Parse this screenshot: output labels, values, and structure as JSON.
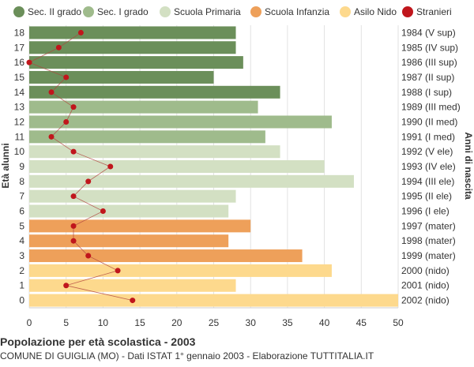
{
  "title": "Popolazione per età scolastica - 2003",
  "subtitle": "COMUNE DI GUIGLIA (MO) - Dati ISTAT 1° gennaio 2003 - Elaborazione TUTTITALIA.IT",
  "chart_data": {
    "type": "bar",
    "orientation": "horizontal",
    "ylabel_left": "Età alunni",
    "ylabel_right": "Anni di nascita",
    "xlim": [
      0,
      50
    ],
    "x_ticks": [
      0,
      5,
      10,
      15,
      20,
      25,
      30,
      35,
      40,
      45,
      50
    ],
    "grid": true,
    "legend_position": "top",
    "legend": [
      {
        "key": "sec2",
        "label": "Sec. II grado",
        "color": "#6b8f5a",
        "shape": "circle"
      },
      {
        "key": "sec1",
        "label": "Sec. I grado",
        "color": "#9fbb8c",
        "shape": "circle"
      },
      {
        "key": "primaria",
        "label": "Scuola Primaria",
        "color": "#d3e0c3",
        "shape": "circle"
      },
      {
        "key": "infanzia",
        "label": "Scuola Infanzia",
        "color": "#eea05a",
        "shape": "circle"
      },
      {
        "key": "nido",
        "label": "Asilo Nido",
        "color": "#fdd98d",
        "shape": "circle"
      },
      {
        "key": "stranieri",
        "label": "Stranieri",
        "color": "#c0161c",
        "shape": "circle"
      }
    ],
    "rows": [
      {
        "age": "18",
        "birth": "1984 (V sup)",
        "value": 28,
        "stranieri": 7,
        "group": "sec2"
      },
      {
        "age": "17",
        "birth": "1985 (IV sup)",
        "value": 28,
        "stranieri": 4,
        "group": "sec2"
      },
      {
        "age": "16",
        "birth": "1986 (III sup)",
        "value": 29,
        "stranieri": 0,
        "group": "sec2"
      },
      {
        "age": "15",
        "birth": "1987 (II sup)",
        "value": 25,
        "stranieri": 5,
        "group": "sec2"
      },
      {
        "age": "14",
        "birth": "1988 (I sup)",
        "value": 34,
        "stranieri": 3,
        "group": "sec2"
      },
      {
        "age": "13",
        "birth": "1989 (III med)",
        "value": 31,
        "stranieri": 6,
        "group": "sec1"
      },
      {
        "age": "12",
        "birth": "1990 (II med)",
        "value": 41,
        "stranieri": 5,
        "group": "sec1"
      },
      {
        "age": "11",
        "birth": "1991 (I med)",
        "value": 32,
        "stranieri": 3,
        "group": "sec1"
      },
      {
        "age": "10",
        "birth": "1992 (V ele)",
        "value": 34,
        "stranieri": 6,
        "group": "primaria"
      },
      {
        "age": "9",
        "birth": "1993 (IV ele)",
        "value": 40,
        "stranieri": 11,
        "group": "primaria"
      },
      {
        "age": "8",
        "birth": "1994 (III ele)",
        "value": 44,
        "stranieri": 8,
        "group": "primaria"
      },
      {
        "age": "7",
        "birth": "1995 (II ele)",
        "value": 28,
        "stranieri": 6,
        "group": "primaria"
      },
      {
        "age": "6",
        "birth": "1996 (I ele)",
        "value": 27,
        "stranieri": 10,
        "group": "primaria"
      },
      {
        "age": "5",
        "birth": "1997 (mater)",
        "value": 30,
        "stranieri": 6,
        "group": "infanzia"
      },
      {
        "age": "4",
        "birth": "1998 (mater)",
        "value": 27,
        "stranieri": 6,
        "group": "infanzia"
      },
      {
        "age": "3",
        "birth": "1999 (mater)",
        "value": 37,
        "stranieri": 8,
        "group": "infanzia"
      },
      {
        "age": "2",
        "birth": "2000 (nido)",
        "value": 41,
        "stranieri": 12,
        "group": "nido"
      },
      {
        "age": "1",
        "birth": "2001 (nido)",
        "value": 28,
        "stranieri": 5,
        "group": "nido"
      },
      {
        "age": "0",
        "birth": "2002 (nido)",
        "value": 50,
        "stranieri": 14,
        "group": "nido"
      }
    ]
  }
}
